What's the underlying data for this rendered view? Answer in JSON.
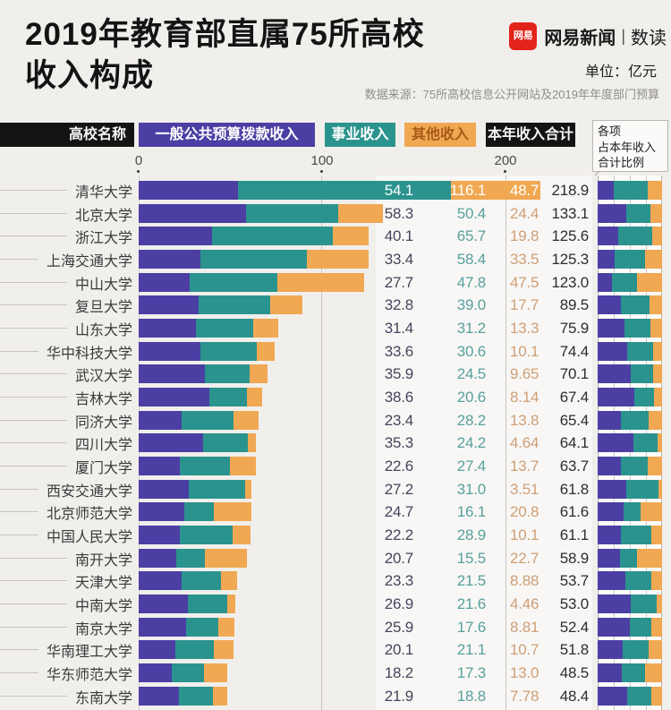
{
  "header": {
    "title_line1": "2019年教育部直属75所高校",
    "title_line2": "收入构成",
    "brand": {
      "logo_text": "网易",
      "name": "网易新闻",
      "divider": "|",
      "sub": "数读"
    },
    "unit_label": "单位：亿元",
    "source": "数据来源：75所高校信息公开网站及2019年年度部门预算"
  },
  "legend": {
    "name_label": "高校名称",
    "budget_label": "一般公共预算拨款收入",
    "business_label": "事业收入",
    "other_label": "其他收入",
    "total_label": "本年收入合计",
    "ratio_box_line1": "各项",
    "ratio_box_line2": "占本年收入",
    "ratio_box_line3": "合计比例"
  },
  "axis": {
    "tick0": "0",
    "tick1": "100",
    "tick2": "200"
  },
  "colors": {
    "budget": "#4b3fa3",
    "business": "#2b938e",
    "other": "#f0a853",
    "dark_badge": "#141414",
    "other_badge_text": "#a85a17",
    "brand_red": "#e2231a",
    "value_budget_text": "#45455c",
    "value_business_text": "#57a09c",
    "value_other_text": "#cf9e74",
    "value_total_text": "#2d2d2d"
  },
  "chart_data": {
    "type": "bar",
    "orientation": "horizontal",
    "stacked": true,
    "unit": "亿元",
    "title": "2019年教育部直属75所高校收入构成",
    "series_names": [
      "一般公共预算拨款收入",
      "事业收入",
      "其他收入"
    ],
    "x_ticks": [
      0,
      100,
      200
    ],
    "xlim": [
      0,
      250
    ],
    "ratio_column": "各项占本年收入合计比例 (100% stacked, gridlines every 25%)",
    "rows": [
      {
        "name": "清华大学",
        "values": [
          "54.1",
          "116.1",
          "48.7"
        ],
        "total": "218.9"
      },
      {
        "name": "北京大学",
        "values": [
          "58.3",
          "50.4",
          "24.4"
        ],
        "total": "133.1"
      },
      {
        "name": "浙江大学",
        "values": [
          "40.1",
          "65.7",
          "19.8"
        ],
        "total": "125.6"
      },
      {
        "name": "上海交通大学",
        "values": [
          "33.4",
          "58.4",
          "33.5"
        ],
        "total": "125.3"
      },
      {
        "name": "中山大学",
        "values": [
          "27.7",
          "47.8",
          "47.5"
        ],
        "total": "123.0"
      },
      {
        "name": "复旦大学",
        "values": [
          "32.8",
          "39.0",
          "17.7"
        ],
        "total": "89.5"
      },
      {
        "name": "山东大学",
        "values": [
          "31.4",
          "31.2",
          "13.3"
        ],
        "total": "75.9"
      },
      {
        "name": "华中科技大学",
        "values": [
          "33.6",
          "30.6",
          "10.1"
        ],
        "total": "74.4"
      },
      {
        "name": "武汉大学",
        "values": [
          "35.9",
          "24.5",
          "9.65"
        ],
        "total": "70.1"
      },
      {
        "name": "吉林大学",
        "values": [
          "38.6",
          "20.6",
          "8.14"
        ],
        "total": "67.4"
      },
      {
        "name": "同济大学",
        "values": [
          "23.4",
          "28.2",
          "13.8"
        ],
        "total": "65.4"
      },
      {
        "name": "四川大学",
        "values": [
          "35.3",
          "24.2",
          "4.64"
        ],
        "total": "64.1"
      },
      {
        "name": "厦门大学",
        "values": [
          "22.6",
          "27.4",
          "13.7"
        ],
        "total": "63.7"
      },
      {
        "name": "西安交通大学",
        "values": [
          "27.2",
          "31.0",
          "3.51"
        ],
        "total": "61.8"
      },
      {
        "name": "北京师范大学",
        "values": [
          "24.7",
          "16.1",
          "20.8"
        ],
        "total": "61.6"
      },
      {
        "name": "中国人民大学",
        "values": [
          "22.2",
          "28.9",
          "10.1"
        ],
        "total": "61.1"
      },
      {
        "name": "南开大学",
        "values": [
          "20.7",
          "15.5",
          "22.7"
        ],
        "total": "58.9"
      },
      {
        "name": "天津大学",
        "values": [
          "23.3",
          "21.5",
          "8.88"
        ],
        "total": "53.7"
      },
      {
        "name": "中南大学",
        "values": [
          "26.9",
          "21.6",
          "4.46"
        ],
        "total": "53.0"
      },
      {
        "name": "南京大学",
        "values": [
          "25.9",
          "17.6",
          "8.81"
        ],
        "total": "52.4"
      },
      {
        "name": "华南理工大学",
        "values": [
          "20.1",
          "21.1",
          "10.7"
        ],
        "total": "51.8"
      },
      {
        "name": "华东师范大学",
        "values": [
          "18.2",
          "17.3",
          "13.0"
        ],
        "total": "48.5"
      },
      {
        "name": "东南大学",
        "values": [
          "21.9",
          "18.8",
          "7.78"
        ],
        "total": "48.4"
      }
    ]
  }
}
